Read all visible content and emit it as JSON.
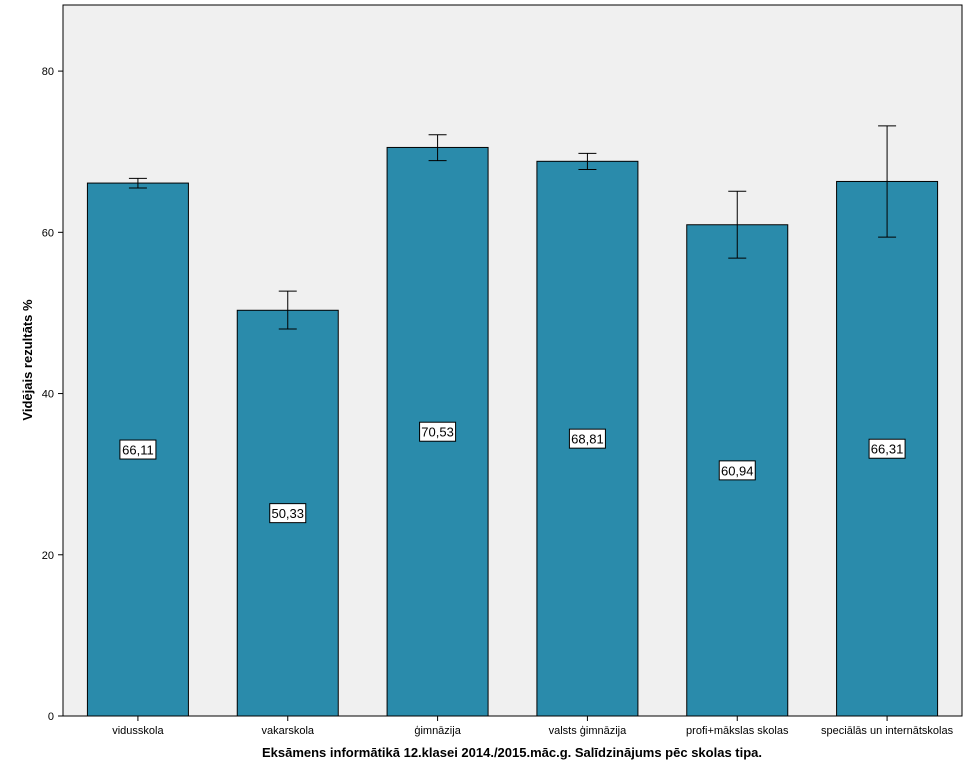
{
  "chart_data": {
    "type": "bar",
    "categories": [
      "vidusskola",
      "vakarskola",
      "ģimnāzija",
      "valsts ģimnāzija",
      "profi+mākslas skolas",
      "speciālās un internātskolas"
    ],
    "values": [
      66.11,
      50.33,
      70.53,
      68.81,
      60.94,
      66.31
    ],
    "value_labels": [
      "66,11",
      "50,33",
      "70,53",
      "68,81",
      "60,94",
      "66,31"
    ],
    "error_bars": [
      {
        "low": 65.5,
        "high": 66.7
      },
      {
        "low": 48.0,
        "high": 52.7
      },
      {
        "low": 68.9,
        "high": 72.1
      },
      {
        "low": 67.8,
        "high": 69.8
      },
      {
        "low": 56.8,
        "high": 65.1
      },
      {
        "low": 59.4,
        "high": 73.2
      }
    ],
    "xlabel": "Eksāmens informātikā 12.klasei 2014./2015.māc.g. Salīdzinājums pēc skolas tipa.",
    "ylabel": "Vidējais rezultāts %",
    "ylim": [
      0,
      88.2
    ],
    "yticks": [
      0,
      20,
      40,
      60,
      80
    ],
    "grid": false,
    "legend": "none",
    "colors": {
      "bar": "#2a8bab",
      "plot_background": "#f0f0f0",
      "axis": "#000000"
    }
  }
}
